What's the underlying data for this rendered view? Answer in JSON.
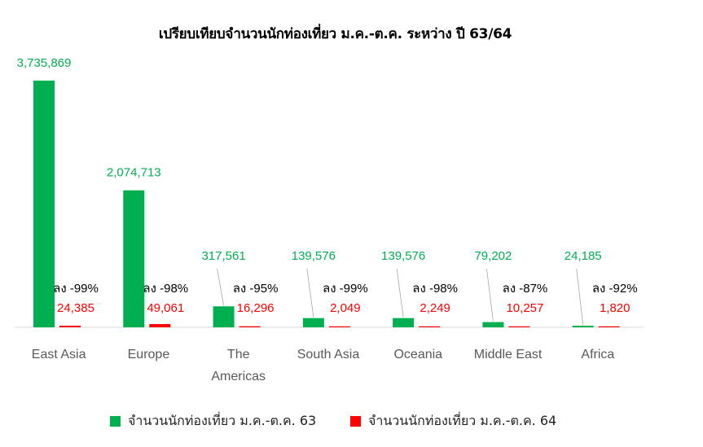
{
  "chart_data": {
    "type": "bar",
    "title": "เปรียบเทียบจำนวนนักท่องเที่ยว ม.ค.-ต.ค. ระหว่าง ปี 63/64",
    "categories": [
      [
        "East  Asia"
      ],
      [
        "Europe"
      ],
      [
        "The",
        "Americas"
      ],
      [
        "South  Asia"
      ],
      [
        "Oceania"
      ],
      [
        "Middle  East"
      ],
      [
        "Africa"
      ]
    ],
    "series": [
      {
        "name": "จำนวนนักท่องเที่ยว ม.ค.-ต.ค. 63",
        "color": "#00b050",
        "values": [
          3735869,
          2074713,
          317561,
          139576,
          139576,
          79202,
          24185
        ],
        "labels": [
          "3,735,869",
          "2,074,713",
          "317,561",
          "139,576",
          "139,576",
          "79,202",
          "24,185"
        ]
      },
      {
        "name": "จำนวนนักท่องเที่ยว ม.ค.-ต.ค. 64",
        "color": "#ff0000",
        "values": [
          24385,
          49061,
          16296,
          2049,
          2249,
          10257,
          1820
        ],
        "labels": [
          "24,385",
          "49,061",
          "16,296",
          "2,049",
          "2,249",
          "10,257",
          "1,820"
        ]
      }
    ],
    "change_labels": [
      "ลง -99%",
      "ลง -98%",
      "ลง -95%",
      "ลง -99%",
      "ลง -98%",
      "ลง -87%",
      "ลง -92%"
    ],
    "ylim": [
      0,
      3735869
    ],
    "grid": false,
    "legend_position": "bottom"
  }
}
